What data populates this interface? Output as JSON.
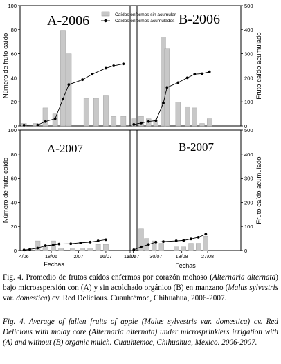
{
  "chart_data": {
    "type": "bar",
    "ylabel_left": "Número de fruto caído",
    "ylabel_right": "Fruto caído acumulado",
    "xlabel": "Fechas",
    "ylim_left": [
      0,
      100
    ],
    "ylim_right": [
      0,
      500
    ],
    "yticks_left": [
      "0",
      "20",
      "40",
      "60",
      "80",
      "100"
    ],
    "yticks_right": [
      "0",
      "100",
      "200",
      "300",
      "400",
      "500"
    ],
    "xticks": [
      "4/06",
      "18/06",
      "2/07",
      "16/07",
      "30/07",
      "13/08",
      "27/08"
    ],
    "legend": {
      "bar": "Caídos enfermos sin acumular",
      "line": "Caídos enfermos acumulados"
    },
    "panels": [
      {
        "title": "A-2006",
        "bars": [
          [
            2,
            2
          ],
          [
            8,
            2
          ],
          [
            13,
            15
          ],
          [
            18,
            10
          ],
          [
            22,
            79
          ],
          [
            25,
            60
          ],
          [
            34,
            23
          ],
          [
            39,
            23
          ],
          [
            44,
            25
          ],
          [
            48,
            8
          ],
          [
            53,
            8
          ]
        ],
        "cumulative": [
          [
            2,
            3
          ],
          [
            9,
            4
          ],
          [
            13,
            18
          ],
          [
            18,
            30
          ],
          [
            22,
            112
          ],
          [
            25,
            172
          ],
          [
            32,
            192
          ],
          [
            37,
            215
          ],
          [
            44,
            240
          ],
          [
            48,
            250
          ],
          [
            53,
            258
          ]
        ]
      },
      {
        "title": "B-2006",
        "bars": [
          [
            2,
            6
          ],
          [
            6,
            8
          ],
          [
            10,
            6
          ],
          [
            14,
            5
          ],
          [
            18,
            74
          ],
          [
            20,
            64
          ],
          [
            26,
            20
          ],
          [
            31,
            16
          ],
          [
            35,
            15
          ],
          [
            39,
            2
          ],
          [
            43,
            6
          ]
        ],
        "cumulative": [
          [
            2,
            6
          ],
          [
            6,
            12
          ],
          [
            10,
            18
          ],
          [
            14,
            22
          ],
          [
            18,
            95
          ],
          [
            20,
            160
          ],
          [
            26,
            180
          ],
          [
            31,
            200
          ],
          [
            35,
            215
          ],
          [
            39,
            217
          ],
          [
            43,
            225
          ]
        ]
      },
      {
        "title": "A-2007",
        "bars": [
          [
            9,
            8
          ],
          [
            13,
            3
          ],
          [
            17,
            8
          ],
          [
            21,
            2
          ],
          [
            27,
            2
          ],
          [
            32,
            2
          ],
          [
            36,
            2
          ],
          [
            40,
            5
          ],
          [
            44,
            5
          ]
        ],
        "cumulative": [
          [
            2,
            2
          ],
          [
            5,
            5
          ],
          [
            9,
            10
          ],
          [
            13,
            20
          ],
          [
            17,
            23
          ],
          [
            20,
            27
          ],
          [
            26,
            28
          ],
          [
            31,
            32
          ],
          [
            36,
            35
          ],
          [
            40,
            40
          ],
          [
            44,
            45
          ]
        ]
      },
      {
        "title": "B-2007",
        "bars": [
          [
            6,
            18
          ],
          [
            9,
            10
          ],
          [
            13,
            8
          ],
          [
            17,
            6
          ],
          [
            25,
            3
          ],
          [
            29,
            3
          ],
          [
            33,
            6
          ],
          [
            37,
            6
          ],
          [
            41,
            12
          ]
        ],
        "cumulative": [
          [
            2,
            3
          ],
          [
            6,
            15
          ],
          [
            10,
            25
          ],
          [
            14,
            35
          ],
          [
            18,
            37
          ],
          [
            25,
            40
          ],
          [
            29,
            42
          ],
          [
            33,
            48
          ],
          [
            37,
            55
          ],
          [
            41,
            68
          ]
        ]
      }
    ]
  },
  "caption": {
    "es_prefix": "Fig. 4. Promedio de frutos caídos enfermos por corazón mohoso (",
    "es_species1": "Alternaria alternata",
    "es_mid1": ") bajo microaspersión con (A) y sin acolchado orgánico (B) en manzano (",
    "es_species2": "Malus sylvestris",
    "es_mid2": " var. ",
    "es_var": "domestica",
    "es_suffix": ") cv. Red Delicious. Cuauhtémoc, Chihuahua, 2006-2007.",
    "en": "Fig. 4. Average of fallen fruits of apple (Malus sylvestris var. domestica) cv. Red Delicious with moldy core (Alternaria alternata) under microsprinklers irrigation with (A) and without (B) organic mulch. Cuauhtemoc, Chihuahua, Mexico. 2006-2007."
  }
}
